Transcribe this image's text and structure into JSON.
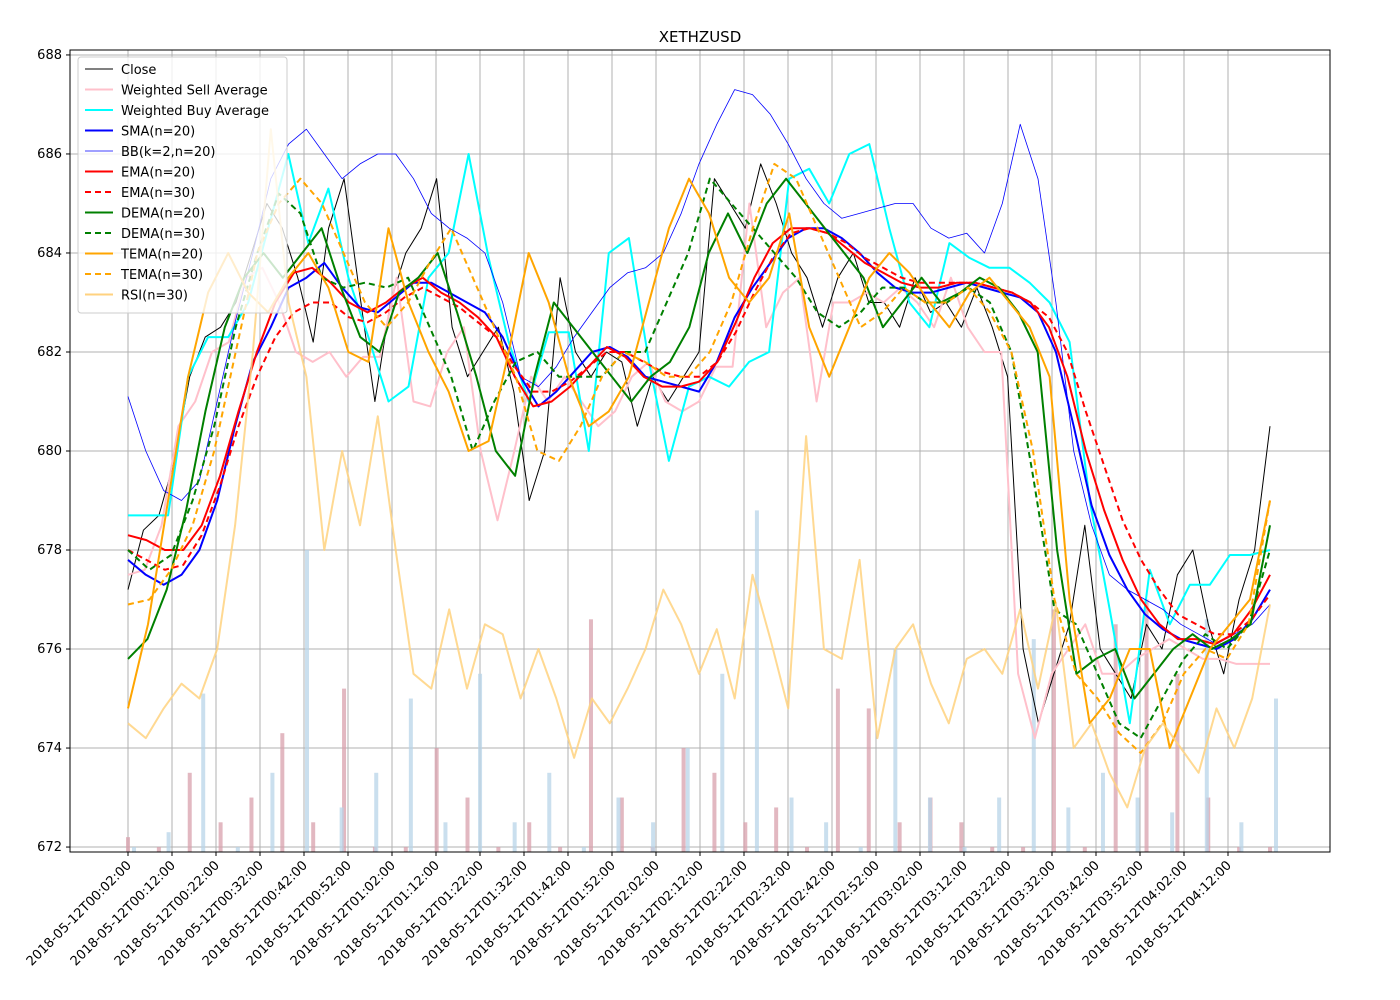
{
  "chart_data": {
    "type": "line",
    "title": "XETHZUSD",
    "xlabel": "",
    "ylabel": "",
    "ylim": [
      671.9,
      688.1
    ],
    "yticks": [
      "672",
      "674",
      "676",
      "678",
      "680",
      "682",
      "684",
      "686",
      "688"
    ],
    "x_tick_labels": [
      "2018-05-12T00:02:00",
      "2018-05-12T00:12:00",
      "2018-05-12T00:22:00",
      "2018-05-12T00:32:00",
      "2018-05-12T00:42:00",
      "2018-05-12T00:52:00",
      "2018-05-12T01:02:00",
      "2018-05-12T01:12:00",
      "2018-05-12T01:22:00",
      "2018-05-12T01:32:00",
      "2018-05-12T01:42:00",
      "2018-05-12T01:52:00",
      "2018-05-12T02:02:00",
      "2018-05-12T02:12:00",
      "2018-05-12T02:22:00",
      "2018-05-12T02:32:00",
      "2018-05-12T02:42:00",
      "2018-05-12T02:52:00",
      "2018-05-12T03:02:00",
      "2018-05-12T03:12:00",
      "2018-05-12T03:22:00",
      "2018-05-12T03:32:00",
      "2018-05-12T03:42:00",
      "2018-05-12T03:52:00",
      "2018-05-12T04:02:00",
      "2018-05-12T04:12:00"
    ],
    "grid": true,
    "legend_position": "upper-left",
    "x_minutes": [
      0,
      20,
      30,
      40,
      50,
      60,
      70,
      80,
      90,
      100,
      110,
      120,
      130,
      140,
      150,
      160,
      170,
      180,
      190,
      200,
      210,
      220,
      230,
      240,
      250,
      260,
      270,
      280,
      290,
      300,
      310,
      320,
      330,
      340,
      350,
      360,
      370,
      380,
      390,
      400,
      410,
      420,
      430,
      440,
      450,
      460,
      470,
      480,
      490,
      500,
      510,
      520,
      530,
      540,
      560,
      580,
      600,
      620,
      640,
      660,
      680,
      700,
      720,
      740,
      760,
      780,
      800,
      820,
      840,
      860,
      880,
      900,
      920,
      940,
      960,
      980,
      1000,
      1020,
      1040,
      1060,
      1080,
      1100,
      1120,
      1140,
      1160,
      1180,
      1200,
      1220,
      1240,
      1260,
      1280,
      1300,
      1320,
      1340,
      1360,
      1380,
      1400,
      1420,
      1440,
      1460,
      1480,
      1500,
      1520,
      1540,
      1560
    ],
    "series": [
      {
        "name": "Close",
        "color": "#000000",
        "style": "solid",
        "values": [
          677.2,
          678.4,
          678.7,
          679.8,
          681.5,
          682.3,
          682.5,
          683.0,
          684.0,
          685.0,
          684.5,
          683.5,
          682.2,
          684.5,
          685.5,
          683.2,
          681.0,
          683.0,
          684.0,
          684.5,
          685.5,
          682.5,
          681.5,
          682.0,
          682.5,
          681.2,
          679.0,
          680.0,
          683.5,
          682.0,
          681.5,
          682.0,
          681.8,
          680.5,
          681.5,
          681.0,
          681.5,
          682.0,
          685.5,
          685.0,
          684.5,
          685.8,
          685.0,
          684.0,
          683.5,
          682.5,
          683.5,
          684.0,
          683.0,
          683.0,
          682.5,
          683.5,
          682.8,
          683.0,
          682.5,
          683.3,
          682.5,
          681.5,
          676.0,
          674.5,
          675.5,
          676.5,
          678.5,
          676.0,
          675.5,
          675.0,
          676.5,
          676.0,
          677.5,
          678.0,
          676.5,
          675.5,
          677.0,
          678.0,
          680.5
        ]
      },
      {
        "name": "Weighted Sell Average",
        "color": "#ffc0cb",
        "style": "solid",
        "values": [
          677.5,
          677.6,
          678.5,
          680.5,
          681.0,
          682.0,
          682.2,
          683.5,
          683.7,
          683.0,
          682.0,
          681.8,
          682.0,
          681.5,
          681.9,
          681.9,
          683.5,
          681.0,
          680.9,
          682.0,
          682.5,
          680.0,
          678.6,
          680.0,
          681.5,
          681.0,
          681.5,
          681.0,
          680.5,
          680.8,
          681.5,
          681.8,
          681.0,
          680.8,
          681.0,
          681.7,
          681.7,
          685.0,
          682.5,
          683.2,
          683.5,
          681.0,
          683.0,
          683.0,
          683.2,
          683.0,
          683.3,
          683.0,
          682.5,
          683.5,
          682.5,
          682.0,
          682.0,
          675.5,
          674.2,
          675.5,
          676.0,
          676.5,
          675.5,
          675.5,
          675.8,
          676.0,
          676.2,
          676.0,
          675.8,
          675.8,
          675.7,
          675.7,
          675.7
        ]
      },
      {
        "name": "Weighted Buy Average",
        "color": "#00ffff",
        "style": "solid",
        "values": [
          678.7,
          678.7,
          678.7,
          681.5,
          682.3,
          682.3,
          683.0,
          684.5,
          686.0,
          684.2,
          685.3,
          683.5,
          682.3,
          681.0,
          681.3,
          683.5,
          684.0,
          686.0,
          683.9,
          682.2,
          681.0,
          682.4,
          682.4,
          680.0,
          684.0,
          684.3,
          681.8,
          679.8,
          681.3,
          681.5,
          681.3,
          681.8,
          682.0,
          685.5,
          685.7,
          685.0,
          686.0,
          686.2,
          684.5,
          683.0,
          682.5,
          684.2,
          683.9,
          683.7,
          683.7,
          683.4,
          683.0,
          682.2,
          679.0,
          676.8,
          674.5,
          677.6,
          676.5,
          677.3,
          677.3,
          677.9,
          677.9,
          678.0
        ]
      },
      {
        "name": "SMA(n=20)",
        "color": "#0000ff",
        "style": "solid",
        "values": [
          677.8,
          677.5,
          677.3,
          677.5,
          678.0,
          679.0,
          680.5,
          681.8,
          682.5,
          683.3,
          683.5,
          683.8,
          683.3,
          682.9,
          682.8,
          683.1,
          683.4,
          683.4,
          683.2,
          683.0,
          682.8,
          682.3,
          681.5,
          680.9,
          681.2,
          681.6,
          682.0,
          682.1,
          681.9,
          681.5,
          681.4,
          681.3,
          681.2,
          681.8,
          682.7,
          683.3,
          683.8,
          684.3,
          684.5,
          684.5,
          684.3,
          684.0,
          683.6,
          683.3,
          683.2,
          683.2,
          683.3,
          683.4,
          683.3,
          683.2,
          683.1,
          682.8,
          682.0,
          680.5,
          678.9,
          677.9,
          677.2,
          676.7,
          676.4,
          676.2,
          676.1,
          676.0,
          676.2,
          676.6,
          677.2
        ]
      },
      {
        "name": "BB(k=2,n=20)",
        "color": "#0000ff",
        "style": "thin",
        "values": [
          681.1,
          680.0,
          679.2,
          679.0,
          679.4,
          681.0,
          682.6,
          684.0,
          685.5,
          686.2,
          686.5,
          686.0,
          685.5,
          685.8,
          686.0,
          686.0,
          685.5,
          684.8,
          684.5,
          684.3,
          684.0,
          683.0,
          681.5,
          681.3,
          681.7,
          682.3,
          682.8,
          683.3,
          683.6,
          683.7,
          684.0,
          684.8,
          685.8,
          686.6,
          687.3,
          687.2,
          686.8,
          686.2,
          685.5,
          685.0,
          684.7,
          684.8,
          684.9,
          685.0,
          685.0,
          684.5,
          684.3,
          684.4,
          684.0,
          685.0,
          686.6,
          685.5,
          683.0,
          680.0,
          678.5,
          677.5,
          677.2,
          677.0,
          676.8,
          676.5,
          676.3,
          676.1,
          676.3,
          676.5,
          676.9
        ]
      },
      {
        "name": "EMA(n=20)",
        "color": "#ff0000",
        "style": "solid",
        "values": [
          678.3,
          678.2,
          678.0,
          678.0,
          678.5,
          679.5,
          680.8,
          682.0,
          683.0,
          683.6,
          683.7,
          683.4,
          683.0,
          682.8,
          683.0,
          683.3,
          683.5,
          683.2,
          683.0,
          682.7,
          682.3,
          681.5,
          680.9,
          681.0,
          681.3,
          681.7,
          682.1,
          681.9,
          681.5,
          681.3,
          681.3,
          681.4,
          681.8,
          682.6,
          683.5,
          684.2,
          684.5,
          684.5,
          684.4,
          684.1,
          683.8,
          683.6,
          683.4,
          683.3,
          683.3,
          683.4,
          683.4,
          683.3,
          683.2,
          683.0,
          682.5,
          681.5,
          680.0,
          678.8,
          677.8,
          677.0,
          676.5,
          676.2,
          676.2,
          676.1,
          676.3,
          676.8,
          677.5
        ]
      },
      {
        "name": "EMA(n=30)",
        "color": "#ff0000",
        "style": "dashed",
        "values": [
          678.0,
          677.8,
          677.6,
          677.7,
          678.3,
          679.3,
          680.5,
          681.5,
          682.3,
          682.8,
          683.0,
          683.0,
          682.7,
          682.6,
          682.8,
          683.1,
          683.3,
          683.1,
          682.9,
          682.6,
          682.3,
          681.7,
          681.2,
          681.2,
          681.4,
          681.7,
          682.0,
          682.0,
          681.8,
          681.6,
          681.5,
          681.5,
          681.8,
          682.4,
          683.2,
          683.9,
          684.4,
          684.5,
          684.4,
          684.2,
          683.9,
          683.7,
          683.5,
          683.4,
          683.4,
          683.4,
          683.4,
          683.3,
          683.2,
          683.0,
          682.7,
          682.0,
          680.8,
          679.7,
          678.6,
          677.8,
          677.2,
          676.7,
          676.5,
          676.3,
          676.3,
          676.6,
          677.1
        ]
      },
      {
        "name": "DEMA(n=20)",
        "color": "#008000",
        "style": "solid",
        "values": [
          675.8,
          676.2,
          677.2,
          678.8,
          680.8,
          682.5,
          683.5,
          684.0,
          683.5,
          684.0,
          684.5,
          683.3,
          682.3,
          682.0,
          683.2,
          683.5,
          684.0,
          682.8,
          681.5,
          680.0,
          679.5,
          681.5,
          683.0,
          682.5,
          682.0,
          681.5,
          681.0,
          681.5,
          681.8,
          682.5,
          684.0,
          684.8,
          684.0,
          685.0,
          685.5,
          685.0,
          684.5,
          684.0,
          683.5,
          682.5,
          683.0,
          683.5,
          683.0,
          683.2,
          683.5,
          683.3,
          682.8,
          682.0,
          678.0,
          675.5,
          675.8,
          676.0,
          675.0,
          675.5,
          676.0,
          676.3,
          676.0,
          676.2,
          676.5,
          678.5
        ]
      },
      {
        "name": "DEMA(n=30)",
        "color": "#008000",
        "style": "dashed",
        "values": [
          678.0,
          677.6,
          677.9,
          679.0,
          680.5,
          682.5,
          684.0,
          685.2,
          684.8,
          683.5,
          683.3,
          683.4,
          683.3,
          683.5,
          682.5,
          681.5,
          680.0,
          681.0,
          681.8,
          682.0,
          681.5,
          681.5,
          681.5,
          682.0,
          682.0,
          683.0,
          684.0,
          685.5,
          685.0,
          684.5,
          684.0,
          683.5,
          682.8,
          682.5,
          682.8,
          683.3,
          683.3,
          683.0,
          683.0,
          683.3,
          683.0,
          682.0,
          679.5,
          676.8,
          676.5,
          675.5,
          674.5,
          674.2,
          675.0,
          675.8,
          676.3,
          676.0,
          676.5,
          678.0
        ]
      },
      {
        "name": "TEMA(n=20)",
        "color": "#ffa500",
        "style": "solid",
        "values": [
          674.8,
          676.5,
          679.0,
          681.5,
          683.2,
          684.0,
          683.2,
          682.8,
          683.5,
          684.0,
          683.3,
          682.0,
          681.8,
          684.5,
          683.0,
          682.0,
          681.2,
          680.0,
          680.2,
          682.0,
          684.0,
          683.0,
          681.5,
          680.5,
          680.8,
          681.5,
          683.0,
          684.5,
          685.5,
          684.8,
          683.5,
          683.0,
          683.5,
          684.8,
          682.5,
          681.5,
          682.5,
          683.5,
          684.0,
          683.6,
          683.0,
          682.5,
          683.2,
          683.5,
          683.0,
          682.5,
          681.5,
          677.0,
          674.5,
          675.0,
          676.0,
          676.0,
          674.0,
          675.0,
          676.0,
          676.5,
          677.0,
          679.0
        ]
      },
      {
        "name": "TEMA(n=30)",
        "color": "#ffa500",
        "style": "dashed",
        "values": [
          676.9,
          677.0,
          677.6,
          678.5,
          680.0,
          682.0,
          684.0,
          685.0,
          685.5,
          685.0,
          684.0,
          683.0,
          682.5,
          683.0,
          683.8,
          684.5,
          683.5,
          682.5,
          681.5,
          680.0,
          679.8,
          680.5,
          681.5,
          682.0,
          681.8,
          681.5,
          681.5,
          682.0,
          683.0,
          684.5,
          685.8,
          685.5,
          684.5,
          683.5,
          682.5,
          682.8,
          683.3,
          683.0,
          683.0,
          683.3,
          682.8,
          682.0,
          680.0,
          677.0,
          675.5,
          675.0,
          674.3,
          673.9,
          674.5,
          675.5,
          676.0,
          675.8,
          676.5,
          679.0
        ]
      },
      {
        "name": "RSI(n=30)",
        "color": "#ffd27f",
        "style": "solid",
        "values": [
          674.5,
          674.2,
          674.8,
          675.3,
          675.0,
          676.0,
          678.5,
          682.0,
          686.5,
          683.0,
          681.5,
          678.0,
          680.0,
          678.5,
          680.7,
          678.0,
          675.5,
          675.2,
          676.8,
          675.2,
          676.5,
          676.3,
          675.0,
          676.0,
          675.0,
          673.8,
          675.0,
          674.5,
          675.2,
          676.0,
          677.2,
          676.5,
          675.5,
          676.4,
          675.0,
          677.5,
          676.2,
          674.8,
          680.3,
          676.0,
          675.8,
          677.8,
          674.2,
          676.0,
          676.5,
          675.3,
          674.5,
          675.8,
          676.0,
          675.5,
          676.8,
          675.2,
          676.9,
          674.0,
          674.5,
          673.5,
          672.8,
          674.0,
          674.5,
          674.0,
          673.5,
          674.8,
          674.0,
          675.0,
          676.9
        ]
      }
    ],
    "volume_series": [
      {
        "name": "sell_volume",
        "color": "#d8a0ac",
        "values": [
          672.2,
          672.0,
          673.5,
          672.5,
          673.0,
          674.3,
          672.5,
          675.2,
          672.0,
          672.0,
          674.0,
          673.0,
          672.0,
          672.5,
          672.0,
          676.6,
          673.0,
          672.0,
          674.0,
          673.5,
          672.5,
          672.8,
          672.0,
          675.2,
          674.8,
          672.5,
          673.0,
          672.5,
          672.0,
          672.0,
          676.8,
          672.0,
          676.5,
          677.0,
          675.5,
          673.0,
          672.0,
          672.0
        ]
      },
      {
        "name": "buy_volume",
        "color": "#b8d4e8",
        "values": [
          672.0,
          672.3,
          675.1,
          672.0,
          673.5,
          678.0,
          672.8,
          673.5,
          675.0,
          672.5,
          675.5,
          672.5,
          673.5,
          672.0,
          673.0,
          672.5,
          674.0,
          675.5,
          678.8,
          673.0,
          672.5,
          672.0,
          676.0,
          673.0,
          672.0,
          673.0,
          676.2,
          672.8,
          673.5,
          673.0,
          672.7,
          676.6,
          672.5,
          675.0
        ]
      }
    ]
  }
}
